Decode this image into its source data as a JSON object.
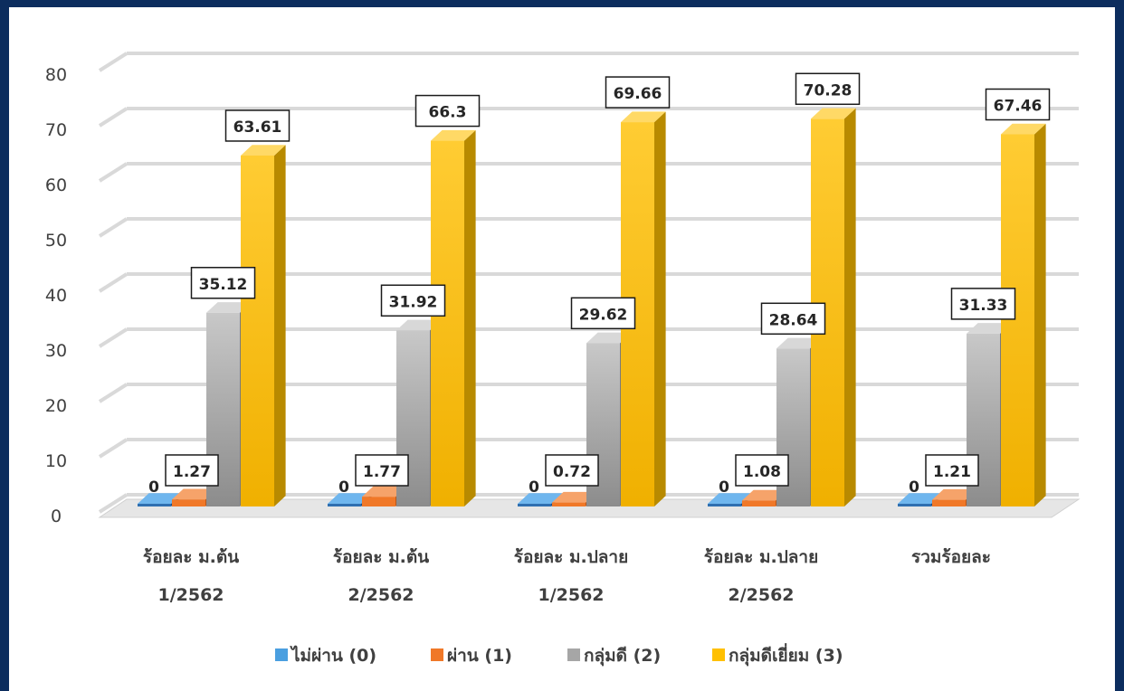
{
  "chart_data": {
    "type": "bar",
    "categories": [
      [
        "ร้อยละ ม.ต้น",
        "1/2562"
      ],
      [
        "ร้อยละ ม.ต้น",
        "2/2562"
      ],
      [
        "ร้อยละ ม.ปลาย",
        "1/2562"
      ],
      [
        "ร้อยละ ม.ปลาย",
        "2/2562"
      ],
      [
        "รวมร้อยละ"
      ]
    ],
    "series": [
      {
        "name": "ไม่ผ่าน (0)",
        "values": [
          0,
          0,
          0,
          0,
          0
        ],
        "labels": [
          "0",
          "0",
          "0",
          "0",
          "0"
        ],
        "color": "#4a9fe0"
      },
      {
        "name": "ผ่าน (1)",
        "values": [
          1.27,
          1.77,
          0.72,
          1.08,
          1.21
        ],
        "labels": [
          "1.27",
          "1.77",
          "0.72",
          "1.08",
          "1.21"
        ],
        "color": "#f07828"
      },
      {
        "name": "กลุ่มดี (2)",
        "values": [
          35.12,
          31.92,
          29.62,
          28.64,
          31.33
        ],
        "labels": [
          "35.12",
          "31.92",
          "29.62",
          "28.64",
          "31.33"
        ],
        "color": "#a6a6a6"
      },
      {
        "name": "กลุ่มดีเยี่ยม (3)",
        "values": [
          63.61,
          66.3,
          69.66,
          70.28,
          67.46
        ],
        "labels": [
          "63.61",
          "66.3",
          "69.66",
          "70.28",
          "67.46"
        ],
        "color": "#ffc000"
      }
    ],
    "yticks": [
      "0",
      "10",
      "20",
      "30",
      "40",
      "50",
      "60",
      "70",
      "80"
    ],
    "ylim": [
      0,
      80
    ],
    "grid": true,
    "legend": "bottom",
    "style": "3d-clustered-column"
  }
}
